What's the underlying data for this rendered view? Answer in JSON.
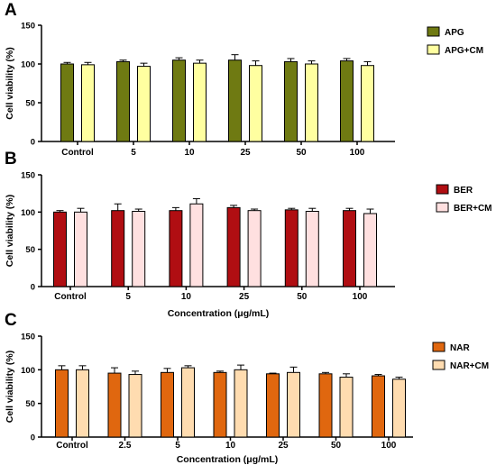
{
  "chart_data": [
    {
      "panel_label": "A",
      "type": "bar",
      "categories": [
        "Control",
        "5",
        "10",
        "25",
        "50",
        "100"
      ],
      "ylabel": "Cell viability (%)",
      "xlabel": "",
      "ylim": [
        0,
        150
      ],
      "yticks": [
        "0",
        "50",
        "100",
        "150"
      ],
      "legend_position": "right",
      "series": [
        {
          "name": "APG",
          "color": "#6f7a12",
          "values": [
            100,
            103,
            105,
            105,
            103,
            104
          ],
          "errors": [
            2,
            2,
            3,
            7,
            4,
            3
          ]
        },
        {
          "name": "APG+CM",
          "color": "#ffffa0",
          "values": [
            99,
            97,
            101,
            98,
            100,
            98
          ],
          "errors": [
            3,
            4,
            4,
            6,
            4,
            5
          ]
        }
      ]
    },
    {
      "panel_label": "B",
      "type": "bar",
      "categories": [
        "Control",
        "5",
        "10",
        "25",
        "50",
        "100"
      ],
      "ylabel": "Cell viability (%)",
      "xlabel": "Concentration (μg/mL)",
      "ylim": [
        0,
        150
      ],
      "yticks": [
        "0",
        "50",
        "100",
        "150"
      ],
      "legend_position": "right",
      "series": [
        {
          "name": "BER",
          "color": "#b00e12",
          "values": [
            100,
            102,
            102,
            106,
            103,
            102
          ],
          "errors": [
            2,
            9,
            4,
            3,
            2,
            3
          ]
        },
        {
          "name": "BER+CM",
          "color": "#ffe0e0",
          "values": [
            100,
            101,
            111,
            102,
            101,
            98
          ],
          "errors": [
            5,
            3,
            7,
            2,
            4,
            6
          ]
        }
      ]
    },
    {
      "panel_label": "C",
      "type": "bar",
      "categories": [
        "Control",
        "2.5",
        "5",
        "10",
        "25",
        "50",
        "100"
      ],
      "ylabel": "Cell viability (%)",
      "xlabel": "Concentration (μg/mL)",
      "ylim": [
        0,
        150
      ],
      "yticks": [
        "0",
        "50",
        "100",
        "150"
      ],
      "legend_position": "right",
      "series": [
        {
          "name": "NAR",
          "color": "#e0670f",
          "values": [
            100,
            95,
            96,
            96,
            94,
            94,
            91
          ],
          "errors": [
            6,
            8,
            6,
            2,
            1,
            2,
            2
          ]
        },
        {
          "name": "NAR+CM",
          "color": "#ffdcb0",
          "values": [
            100,
            93,
            103,
            100,
            96,
            89,
            86
          ],
          "errors": [
            6,
            5,
            3,
            7,
            8,
            5,
            3
          ]
        }
      ]
    }
  ]
}
